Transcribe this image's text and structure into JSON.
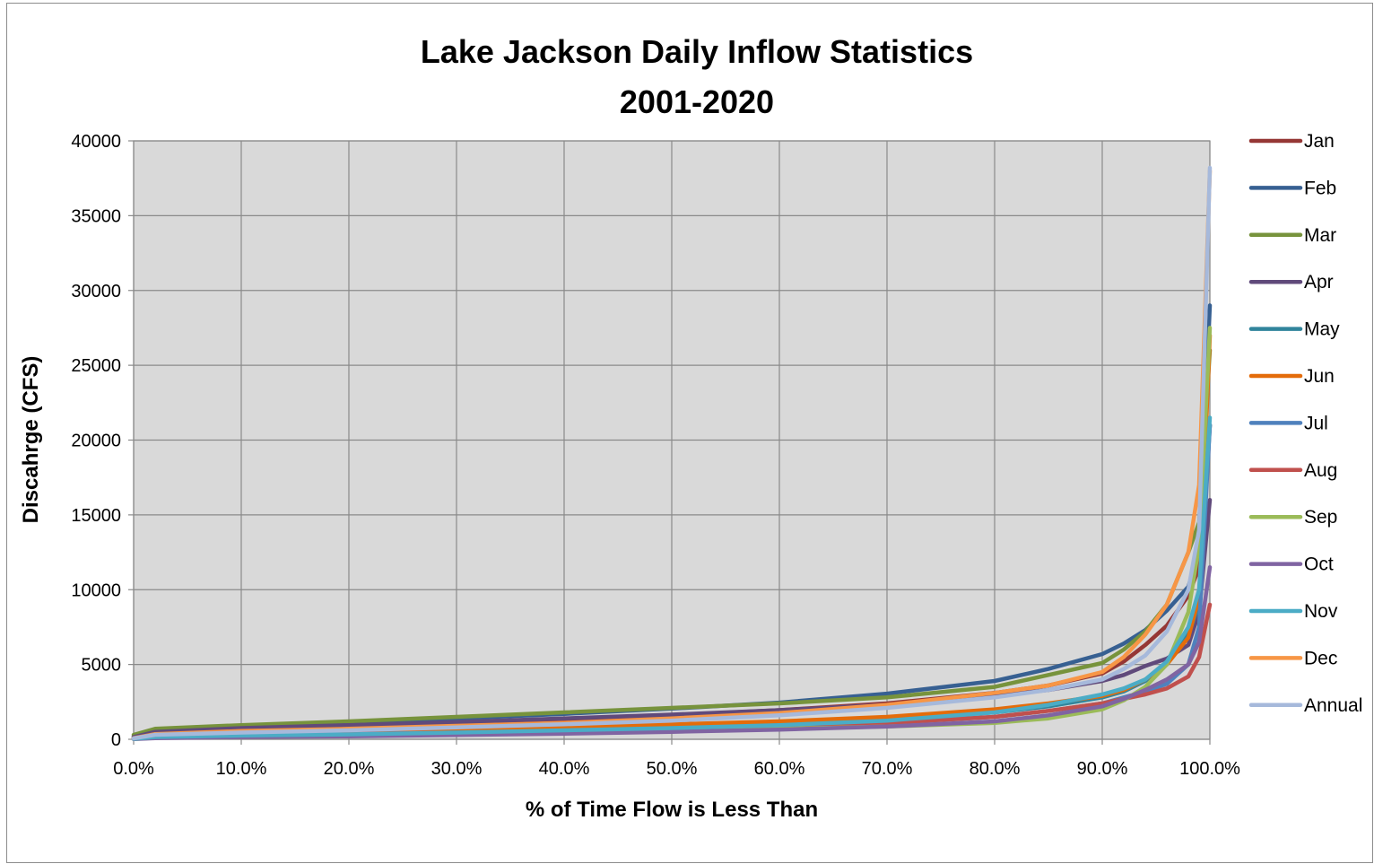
{
  "chart_data": {
    "type": "line",
    "title": "Lake Jackson Daily Inflow Statistics",
    "subtitle": "2001-2020",
    "xlabel": "% of Time Flow is Less Than",
    "ylabel": "Discahrge (CFS)",
    "xlim": [
      0,
      100
    ],
    "ylim": [
      0,
      40000
    ],
    "x_ticks": [
      0,
      10,
      20,
      30,
      40,
      50,
      60,
      70,
      80,
      90,
      100
    ],
    "x_tick_labels": [
      "0.0%",
      "10.0%",
      "20.0%",
      "30.0%",
      "40.0%",
      "50.0%",
      "60.0%",
      "70.0%",
      "80.0%",
      "90.0%",
      "100.0%"
    ],
    "y_ticks": [
      0,
      5000,
      10000,
      15000,
      20000,
      25000,
      30000,
      35000,
      40000
    ],
    "y_tick_labels": [
      "0",
      "5000",
      "10000",
      "15000",
      "20000",
      "25000",
      "30000",
      "35000",
      "40000"
    ],
    "grid": true,
    "legend_position": "right",
    "plot_background": "#d9d9d9",
    "series": [
      {
        "name": "Jan",
        "color": "#953735",
        "points": [
          [
            0,
            100
          ],
          [
            2,
            450
          ],
          [
            10,
            700
          ],
          [
            20,
            900
          ],
          [
            30,
            1150
          ],
          [
            40,
            1350
          ],
          [
            50,
            1600
          ],
          [
            60,
            1950
          ],
          [
            70,
            2400
          ],
          [
            80,
            3100
          ],
          [
            85,
            3600
          ],
          [
            90,
            4400
          ],
          [
            92,
            5200
          ],
          [
            94,
            6300
          ],
          [
            96,
            7600
          ],
          [
            98,
            9600
          ],
          [
            99,
            11500
          ],
          [
            100,
            21000
          ]
        ]
      },
      {
        "name": "Feb",
        "color": "#376092",
        "points": [
          [
            0,
            200
          ],
          [
            2,
            600
          ],
          [
            10,
            850
          ],
          [
            20,
            1100
          ],
          [
            30,
            1400
          ],
          [
            40,
            1700
          ],
          [
            50,
            2050
          ],
          [
            60,
            2450
          ],
          [
            70,
            3050
          ],
          [
            80,
            3900
          ],
          [
            85,
            4700
          ],
          [
            90,
            5700
          ],
          [
            92,
            6400
          ],
          [
            94,
            7300
          ],
          [
            96,
            8600
          ],
          [
            98,
            10200
          ],
          [
            99,
            12500
          ],
          [
            100,
            29000
          ]
        ]
      },
      {
        "name": "Mar",
        "color": "#77933c",
        "points": [
          [
            0,
            300
          ],
          [
            2,
            700
          ],
          [
            10,
            950
          ],
          [
            20,
            1200
          ],
          [
            30,
            1500
          ],
          [
            40,
            1800
          ],
          [
            50,
            2100
          ],
          [
            60,
            2400
          ],
          [
            70,
            2800
          ],
          [
            80,
            3500
          ],
          [
            85,
            4300
          ],
          [
            90,
            5100
          ],
          [
            92,
            6000
          ],
          [
            94,
            7200
          ],
          [
            96,
            9000
          ],
          [
            98,
            12500
          ],
          [
            99,
            14500
          ],
          [
            100,
            26000
          ]
        ]
      },
      {
        "name": "Apr",
        "color": "#604a7b",
        "points": [
          [
            0,
            150
          ],
          [
            2,
            500
          ],
          [
            10,
            750
          ],
          [
            20,
            950
          ],
          [
            30,
            1150
          ],
          [
            40,
            1400
          ],
          [
            50,
            1650
          ],
          [
            60,
            1950
          ],
          [
            70,
            2300
          ],
          [
            80,
            2900
          ],
          [
            85,
            3300
          ],
          [
            90,
            3900
          ],
          [
            92,
            4300
          ],
          [
            94,
            4900
          ],
          [
            96,
            5400
          ],
          [
            98,
            6300
          ],
          [
            99,
            8500
          ],
          [
            100,
            16000
          ]
        ]
      },
      {
        "name": "May",
        "color": "#31859c",
        "points": [
          [
            0,
            50
          ],
          [
            2,
            200
          ],
          [
            10,
            300
          ],
          [
            20,
            400
          ],
          [
            30,
            500
          ],
          [
            40,
            650
          ],
          [
            50,
            800
          ],
          [
            60,
            1000
          ],
          [
            70,
            1300
          ],
          [
            80,
            1800
          ],
          [
            85,
            2200
          ],
          [
            90,
            2800
          ],
          [
            92,
            3200
          ],
          [
            94,
            3900
          ],
          [
            96,
            5000
          ],
          [
            98,
            7000
          ],
          [
            99,
            9000
          ],
          [
            100,
            21000
          ]
        ]
      },
      {
        "name": "Jun",
        "color": "#e46c0a",
        "points": [
          [
            0,
            50
          ],
          [
            2,
            250
          ],
          [
            10,
            400
          ],
          [
            20,
            550
          ],
          [
            30,
            700
          ],
          [
            40,
            850
          ],
          [
            50,
            1000
          ],
          [
            60,
            1200
          ],
          [
            70,
            1500
          ],
          [
            80,
            2000
          ],
          [
            85,
            2400
          ],
          [
            90,
            2900
          ],
          [
            92,
            3300
          ],
          [
            94,
            4000
          ],
          [
            96,
            5000
          ],
          [
            98,
            6800
          ],
          [
            99,
            9500
          ],
          [
            100,
            27000
          ]
        ]
      },
      {
        "name": "Jul",
        "color": "#4f81bd",
        "points": [
          [
            0,
            30
          ],
          [
            2,
            150
          ],
          [
            10,
            250
          ],
          [
            20,
            350
          ],
          [
            30,
            450
          ],
          [
            40,
            550
          ],
          [
            50,
            700
          ],
          [
            60,
            850
          ],
          [
            70,
            1100
          ],
          [
            80,
            1500
          ],
          [
            85,
            1900
          ],
          [
            90,
            2400
          ],
          [
            92,
            2800
          ],
          [
            94,
            3200
          ],
          [
            96,
            3700
          ],
          [
            98,
            5000
          ],
          [
            99,
            7500
          ],
          [
            100,
            21000
          ]
        ]
      },
      {
        "name": "Aug",
        "color": "#c0504d",
        "points": [
          [
            0,
            30
          ],
          [
            2,
            150
          ],
          [
            10,
            250
          ],
          [
            20,
            350
          ],
          [
            30,
            450
          ],
          [
            40,
            550
          ],
          [
            50,
            700
          ],
          [
            60,
            850
          ],
          [
            70,
            1100
          ],
          [
            80,
            1500
          ],
          [
            85,
            1900
          ],
          [
            90,
            2400
          ],
          [
            92,
            2700
          ],
          [
            94,
            3000
          ],
          [
            96,
            3400
          ],
          [
            98,
            4200
          ],
          [
            99,
            5500
          ],
          [
            100,
            9000
          ]
        ]
      },
      {
        "name": "Sep",
        "color": "#9bbb59",
        "points": [
          [
            0,
            20
          ],
          [
            2,
            100
          ],
          [
            10,
            180
          ],
          [
            20,
            250
          ],
          [
            30,
            350
          ],
          [
            40,
            450
          ],
          [
            50,
            550
          ],
          [
            60,
            700
          ],
          [
            70,
            850
          ],
          [
            80,
            1100
          ],
          [
            85,
            1400
          ],
          [
            90,
            2000
          ],
          [
            92,
            2600
          ],
          [
            94,
            3500
          ],
          [
            96,
            5000
          ],
          [
            98,
            8500
          ],
          [
            99,
            13000
          ],
          [
            100,
            27500
          ]
        ]
      },
      {
        "name": "Oct",
        "color": "#8064a2",
        "points": [
          [
            0,
            20
          ],
          [
            2,
            80
          ],
          [
            10,
            150
          ],
          [
            20,
            200
          ],
          [
            30,
            280
          ],
          [
            40,
            380
          ],
          [
            50,
            500
          ],
          [
            60,
            650
          ],
          [
            70,
            850
          ],
          [
            80,
            1200
          ],
          [
            85,
            1600
          ],
          [
            90,
            2200
          ],
          [
            92,
            2700
          ],
          [
            94,
            3300
          ],
          [
            96,
            4000
          ],
          [
            98,
            5000
          ],
          [
            99,
            6500
          ],
          [
            100,
            11500
          ]
        ]
      },
      {
        "name": "Nov",
        "color": "#4bacc6",
        "points": [
          [
            0,
            30
          ],
          [
            2,
            150
          ],
          [
            10,
            250
          ],
          [
            20,
            330
          ],
          [
            30,
            450
          ],
          [
            40,
            600
          ],
          [
            50,
            750
          ],
          [
            60,
            950
          ],
          [
            70,
            1250
          ],
          [
            80,
            1800
          ],
          [
            85,
            2300
          ],
          [
            90,
            3000
          ],
          [
            92,
            3400
          ],
          [
            94,
            4000
          ],
          [
            96,
            5200
          ],
          [
            98,
            7500
          ],
          [
            99,
            10000
          ],
          [
            100,
            21500
          ]
        ]
      },
      {
        "name": "Dec",
        "color": "#f79646",
        "points": [
          [
            0,
            80
          ],
          [
            2,
            350
          ],
          [
            10,
            550
          ],
          [
            20,
            700
          ],
          [
            30,
            900
          ],
          [
            40,
            1100
          ],
          [
            50,
            1400
          ],
          [
            60,
            1750
          ],
          [
            70,
            2300
          ],
          [
            80,
            3100
          ],
          [
            85,
            3600
          ],
          [
            90,
            4500
          ],
          [
            92,
            5500
          ],
          [
            94,
            7000
          ],
          [
            96,
            9000
          ],
          [
            98,
            12500
          ],
          [
            99,
            17000
          ],
          [
            100,
            38000
          ]
        ]
      },
      {
        "name": "Annual",
        "color": "#a6b9db",
        "points": [
          [
            0,
            60
          ],
          [
            2,
            300
          ],
          [
            10,
            450
          ],
          [
            20,
            600
          ],
          [
            30,
            800
          ],
          [
            40,
            1000
          ],
          [
            50,
            1250
          ],
          [
            60,
            1600
          ],
          [
            70,
            2100
          ],
          [
            80,
            2800
          ],
          [
            85,
            3300
          ],
          [
            90,
            4000
          ],
          [
            92,
            4700
          ],
          [
            94,
            5600
          ],
          [
            96,
            7200
          ],
          [
            98,
            10000
          ],
          [
            99,
            14000
          ],
          [
            100,
            38200
          ]
        ]
      }
    ]
  }
}
